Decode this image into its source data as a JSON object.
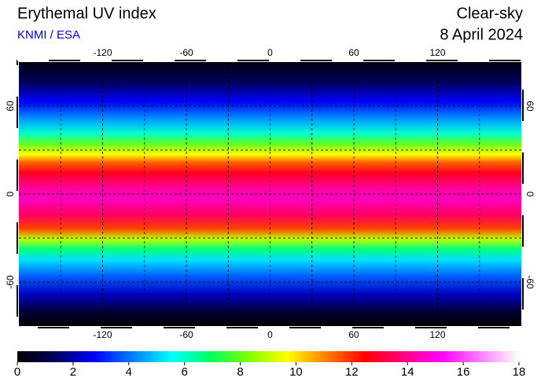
{
  "header": {
    "title": "Erythemal UV index",
    "subtitle": "KNMI / ESA",
    "mode": "Clear-sky",
    "date": "8 April 2024"
  },
  "map": {
    "lonlim": [
      -180,
      180
    ],
    "latlim": [
      -90,
      90
    ],
    "lon_ticks": [
      -120,
      -60,
      0,
      60,
      120
    ],
    "lat_ticks": [
      60,
      0,
      -60
    ],
    "grid_step": 30
  },
  "colorbar": {
    "range": [
      0,
      18
    ],
    "ticks": [
      0,
      2,
      4,
      6,
      8,
      10,
      12,
      14,
      16,
      18
    ],
    "colors": [
      "#000000",
      "#000060",
      "#0000ff",
      "#0080ff",
      "#00ffff",
      "#00ff60",
      "#80ff00",
      "#ffff00",
      "#ff8000",
      "#ff0000",
      "#ff0080",
      "#ff00ff",
      "#ff80ff",
      "#ffffff"
    ]
  }
}
